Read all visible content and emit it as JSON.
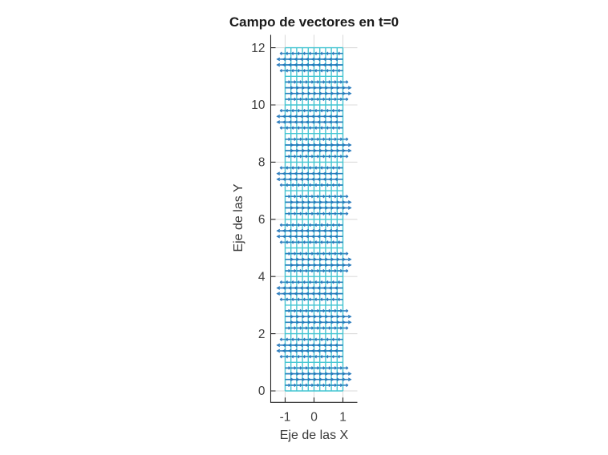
{
  "chart_data": {
    "type": "quiver",
    "title": "Campo de vectores en t=0",
    "xlabel": "Eje de las X",
    "ylabel": "Eje de las Y",
    "xlim": [
      -1.5,
      1.5
    ],
    "ylim": [
      -0.4,
      12.45
    ],
    "xticks": [
      -1,
      0,
      1
    ],
    "yticks": [
      0,
      2,
      4,
      6,
      8,
      10,
      12
    ],
    "grid": "on",
    "legend": "none",
    "field": {
      "description": "Dense vector field at t=0: a uniform cyan lattice of grid vectors plus blue horizontal vectors u=sin(pi*y); rows just above even y point right, rows just above odd y point left",
      "x_start": -1,
      "x_end": 1,
      "x_step": 0.2,
      "y_start": 0,
      "y_end": 12,
      "y_step": 0.2,
      "columns_x": [
        -1,
        -0.8,
        -0.6,
        -0.4,
        -0.2,
        0,
        0.2,
        0.4,
        0.6,
        0.8,
        1
      ],
      "u_formula": "sin(pi*y)",
      "u_period_pattern": [
        0,
        0.588,
        0.951,
        0.951,
        0.588,
        0,
        -0.588,
        -0.951,
        -0.951,
        -0.588
      ],
      "u_scale_data_units": 0.29
    },
    "colors": {
      "lattice_cyan": "#3CC3D1",
      "arrow_blue": "#1F74B9",
      "gridline_gray": "#DBDBDB",
      "axis_color": "#262626",
      "background": "#FFFFFF"
    }
  }
}
